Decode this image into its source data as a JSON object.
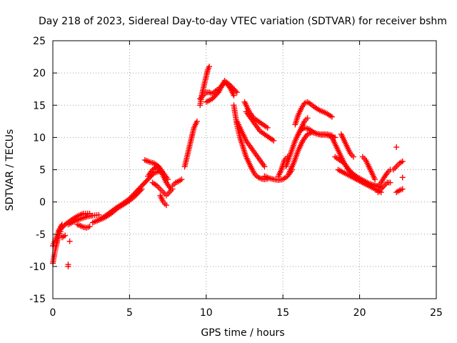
{
  "chart_data": {
    "type": "scatter",
    "title": "Day 218 of 2023, Sidereal Day-to-day VTEC variation (SDTVAR) for receiver bshm",
    "xlabel": "GPS time / hours",
    "ylabel": "SDTVAR / TECUs",
    "xlim": [
      0,
      25
    ],
    "ylim": [
      -15,
      25
    ],
    "xticks": [
      0,
      5,
      10,
      15,
      20,
      25
    ],
    "yticks": [
      -15,
      -10,
      -5,
      0,
      5,
      10,
      15,
      20,
      25
    ],
    "xtick_labels": [
      "0",
      "5",
      "10",
      "15",
      "20",
      "25"
    ],
    "ytick_labels": [
      "-15",
      "-10",
      "-5",
      "0",
      "5",
      "10",
      "15",
      "20",
      "25"
    ],
    "grid": true,
    "marker": "+",
    "marker_color": "#ff0000",
    "series": [
      {
        "name": "SDTVAR",
        "traces": [
          {
            "x": [
              0.0,
              0.1,
              0.2,
              0.3,
              0.4,
              0.5
            ],
            "y": [
              -9.5,
              -8.2,
              -7.0,
              -6.0,
              -5.2,
              -4.6
            ]
          },
          {
            "x": [
              0.0,
              0.1,
              0.2,
              0.3,
              0.4,
              0.5,
              0.6
            ],
            "y": [
              -6.8,
              -6.2,
              -5.6,
              -5.0,
              -4.4,
              -3.9,
              -3.5
            ]
          },
          {
            "x": [
              0.4,
              0.8,
              1.2,
              1.6,
              2.0,
              2.4
            ],
            "y": [
              -4.5,
              -3.5,
              -2.8,
              -2.2,
              -1.8,
              -1.8
            ]
          },
          {
            "x": [
              1.0,
              1.4,
              1.8,
              2.2,
              2.6,
              3.0
            ],
            "y": [
              -3.5,
              -3.0,
              -2.6,
              -2.3,
              -2.1,
              -2.0
            ]
          },
          {
            "x": [
              1.6,
              1.8,
              2.0,
              2.2,
              2.4
            ],
            "y": [
              -3.5,
              -3.7,
              -3.9,
              -4.0,
              -3.8
            ]
          },
          {
            "x": [
              2.6,
              3.0,
              3.4,
              3.8,
              4.2,
              4.6,
              5.0,
              5.4,
              5.8,
              6.2,
              6.6,
              7.0
            ],
            "y": [
              -3.2,
              -2.8,
              -2.2,
              -1.5,
              -0.8,
              -0.2,
              0.5,
              1.5,
              2.5,
              3.5,
              4.5,
              4.8
            ]
          },
          {
            "x": [
              3.0,
              3.4,
              3.8,
              4.2,
              4.6,
              5.0,
              5.4,
              5.8
            ],
            "y": [
              -2.8,
              -2.4,
              -1.8,
              -1.0,
              -0.4,
              0.2,
              1.0,
              2.0
            ]
          },
          {
            "x": [
              6.0,
              6.3,
              6.6,
              6.9,
              7.2,
              7.5
            ],
            "y": [
              6.5,
              6.2,
              6.0,
              5.5,
              4.5,
              3.5
            ]
          },
          {
            "x": [
              6.2,
              6.5,
              6.8,
              7.1,
              7.4,
              7.7
            ],
            "y": [
              4.0,
              5.0,
              5.5,
              4.5,
              3.0,
              2.0
            ]
          },
          {
            "x": [
              6.5,
              6.8,
              7.0,
              7.2,
              7.4,
              7.6,
              7.8
            ],
            "y": [
              3.0,
              2.5,
              2.0,
              1.5,
              1.0,
              1.5,
              2.0
            ]
          },
          {
            "x": [
              7.0,
              7.1,
              7.2,
              7.3,
              7.4
            ],
            "y": [
              1.0,
              0.5,
              0.0,
              -0.3,
              -0.5
            ]
          },
          {
            "x": [
              7.8,
              8.0,
              8.2,
              8.4
            ],
            "y": [
              2.5,
              3.0,
              3.2,
              3.5
            ]
          },
          {
            "x": [
              8.6,
              8.7,
              8.8,
              8.9,
              9.0,
              9.1,
              9.2,
              9.3,
              9.4
            ],
            "y": [
              5.5,
              6.5,
              7.5,
              8.5,
              9.5,
              10.5,
              11.5,
              12.0,
              12.5
            ]
          },
          {
            "x": [
              9.6,
              9.7,
              9.8,
              9.9,
              10.0,
              10.1,
              10.2
            ],
            "y": [
              15.0,
              16.5,
              17.5,
              18.5,
              19.5,
              20.5,
              21.0
            ]
          },
          {
            "x": [
              9.6,
              9.8,
              10.0,
              10.2,
              10.4,
              10.6,
              10.8,
              11.0,
              11.2,
              11.4,
              11.6,
              11.8
            ],
            "y": [
              16.0,
              16.5,
              17.0,
              17.0,
              16.8,
              17.2,
              17.5,
              18.0,
              18.5,
              18.2,
              17.5,
              16.5
            ]
          },
          {
            "x": [
              10.0,
              10.4,
              10.8,
              11.2,
              11.6,
              12.0
            ],
            "y": [
              15.5,
              16.0,
              17.0,
              18.8,
              18.0,
              17.0
            ]
          },
          {
            "x": [
              11.8,
              12.0,
              12.2,
              12.4,
              12.6,
              12.8,
              13.0,
              13.2,
              13.4,
              13.6,
              13.8,
              14.0
            ],
            "y": [
              15.0,
              12.0,
              10.0,
              8.5,
              7.0,
              6.0,
              5.0,
              4.2,
              3.8,
              3.6,
              3.5,
              3.6
            ]
          },
          {
            "x": [
              12.0,
              12.3,
              12.6,
              12.9,
              13.2,
              13.5,
              13.8
            ],
            "y": [
              12.5,
              11.0,
              9.5,
              8.5,
              7.5,
              6.5,
              5.5
            ]
          },
          {
            "x": [
              12.6,
              12.9,
              13.2,
              13.5,
              13.8,
              14.1,
              14.4
            ],
            "y": [
              14.0,
              13.0,
              12.0,
              11.0,
              10.5,
              10.0,
              9.5
            ]
          },
          {
            "x": [
              12.5,
              12.8,
              13.1,
              13.4,
              13.7,
              14.0
            ],
            "y": [
              15.5,
              14.0,
              13.0,
              12.5,
              12.0,
              11.5
            ]
          },
          {
            "x": [
              13.8,
              14.1,
              14.4,
              14.7,
              15.0,
              15.3,
              15.6
            ],
            "y": [
              4.0,
              3.7,
              3.5,
              3.4,
              3.5,
              4.0,
              5.0
            ]
          },
          {
            "x": [
              15.2,
              15.5,
              15.8,
              16.1,
              16.4,
              16.7,
              17.0,
              17.3,
              17.6,
              17.9,
              18.2
            ],
            "y": [
              5.5,
              7.5,
              9.5,
              11.0,
              11.5,
              11.3,
              10.8,
              10.5,
              10.5,
              10.5,
              10.3
            ]
          },
          {
            "x": [
              15.4,
              15.7,
              16.0,
              16.3,
              16.6,
              16.9,
              17.2,
              17.5,
              17.8,
              18.1,
              18.4
            ],
            "y": [
              4.5,
              6.0,
              8.0,
              9.5,
              10.5,
              10.8,
              10.6,
              10.4,
              10.4,
              10.2,
              10.0
            ]
          },
          {
            "x": [
              15.8,
              16.0,
              16.2,
              16.4,
              16.6,
              16.8,
              17.0,
              17.2,
              17.4,
              17.6,
              17.8,
              18.0,
              18.2
            ],
            "y": [
              12.0,
              13.5,
              14.5,
              15.3,
              15.5,
              15.2,
              14.8,
              14.5,
              14.2,
              14.0,
              13.8,
              13.5,
              13.2
            ]
          },
          {
            "x": [
              14.7,
              14.9,
              15.1,
              15.3
            ],
            "y": [
              4.0,
              5.0,
              6.5,
              7.0
            ]
          },
          {
            "x": [
              16.0,
              16.2,
              16.4,
              16.6
            ],
            "y": [
              10.5,
              11.5,
              12.5,
              13.0
            ]
          },
          {
            "x": [
              18.2,
              18.4,
              18.6,
              18.8,
              19.0,
              19.2,
              19.4,
              19.6,
              19.8,
              20.0,
              20.2,
              20.4,
              20.6,
              20.8,
              21.0
            ],
            "y": [
              10.0,
              9.0,
              8.0,
              7.0,
              6.0,
              5.2,
              4.6,
              4.0,
              3.6,
              3.3,
              3.0,
              2.8,
              2.6,
              2.5,
              2.5
            ]
          },
          {
            "x": [
              18.4,
              18.7,
              19.0,
              19.3,
              19.6,
              19.9,
              20.2,
              20.5,
              20.8,
              21.1,
              21.4
            ],
            "y": [
              7.0,
              6.5,
              6.0,
              5.0,
              4.3,
              3.8,
              3.4,
              3.0,
              2.7,
              2.5,
              2.2
            ]
          },
          {
            "x": [
              18.6,
              19.0,
              19.4,
              19.8,
              20.2,
              20.6,
              21.0,
              21.4
            ],
            "y": [
              5.0,
              4.5,
              4.0,
              3.5,
              3.0,
              2.5,
              2.0,
              1.5
            ]
          },
          {
            "x": [
              18.8,
              19.0,
              19.2,
              19.4,
              19.6
            ],
            "y": [
              10.5,
              9.5,
              8.5,
              7.5,
              7.0
            ]
          },
          {
            "x": [
              20.2,
              20.4,
              20.6,
              20.8,
              21.0
            ],
            "y": [
              7.0,
              6.5,
              5.5,
              4.5,
              3.5
            ]
          },
          {
            "x": [
              21.2,
              21.4,
              21.6,
              21.8,
              22.0
            ],
            "y": [
              2.5,
              3.0,
              3.8,
              4.5,
              5.0
            ]
          },
          {
            "x": [
              21.2,
              21.4,
              21.6,
              21.8,
              22.0
            ],
            "y": [
              1.5,
              2.0,
              2.5,
              3.0,
              3.0
            ]
          },
          {
            "x": [
              22.2,
              22.4,
              22.6,
              22.8
            ],
            "y": [
              5.0,
              5.5,
              6.0,
              6.3
            ]
          },
          {
            "x": [
              22.4,
              22.6,
              22.8
            ],
            "y": [
              1.5,
              1.8,
              2.0
            ]
          },
          {
            "x": [
              22.8
            ],
            "y": [
              3.8
            ]
          },
          {
            "x": [
              22.4
            ],
            "y": [
              8.5
            ]
          },
          {
            "x": [
              1.0,
              1.0
            ],
            "y": [
              -9.7,
              -10.0
            ]
          },
          {
            "x": [
              1.1
            ],
            "y": [
              -6.1
            ]
          },
          {
            "x": [
              0.6,
              0.8
            ],
            "y": [
              -5.5,
              -5.2
            ]
          }
        ]
      }
    ]
  }
}
